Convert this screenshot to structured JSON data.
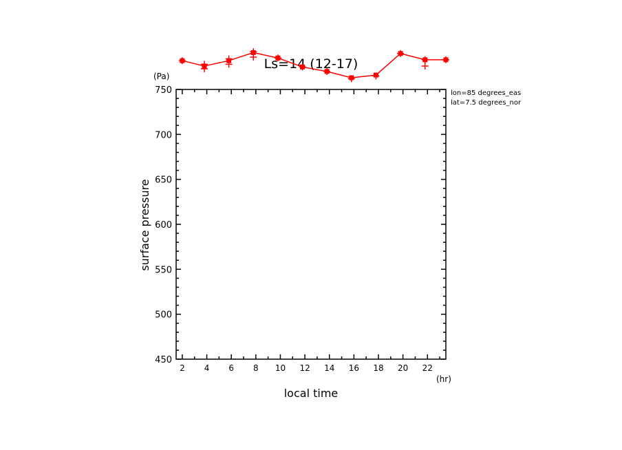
{
  "chart_data": {
    "type": "line",
    "title": "Ls=14 (12-17)",
    "xlabel": "local time",
    "ylabel": "surface pressure",
    "xunit": "(hr)",
    "yunit": "(Pa)",
    "annotations": [
      "lon=85 degrees_eas",
      "lat=7.5 degrees_nor"
    ],
    "xlim": [
      1.5,
      23.5
    ],
    "ylim": [
      450,
      750
    ],
    "xticks": [
      2,
      4,
      6,
      8,
      10,
      12,
      14,
      16,
      18,
      20,
      22
    ],
    "yticks": [
      450,
      500,
      550,
      600,
      650,
      700,
      750
    ],
    "grid": false,
    "series": [
      {
        "color": "#ff0000",
        "line_x": [
          2,
          3.8,
          5.8,
          7.8,
          9.8,
          11.8,
          13.8,
          15.8,
          17.8,
          19.8,
          21.8,
          23.5
        ],
        "line_y": [
          782,
          776,
          782,
          791,
          785,
          775,
          770,
          763,
          766,
          790,
          783,
          783
        ],
        "scatter_x": [
          2,
          3.8,
          3.8,
          5.8,
          5.8,
          7.8,
          7.8,
          9.8,
          11.8,
          13.8,
          15.8,
          17.8,
          19.8,
          21.8,
          21.8,
          23.5
        ],
        "scatter_y": [
          782,
          778,
          773,
          784,
          778,
          792,
          786,
          785,
          775,
          770,
          762,
          765,
          790,
          783,
          776,
          783
        ]
      }
    ]
  }
}
